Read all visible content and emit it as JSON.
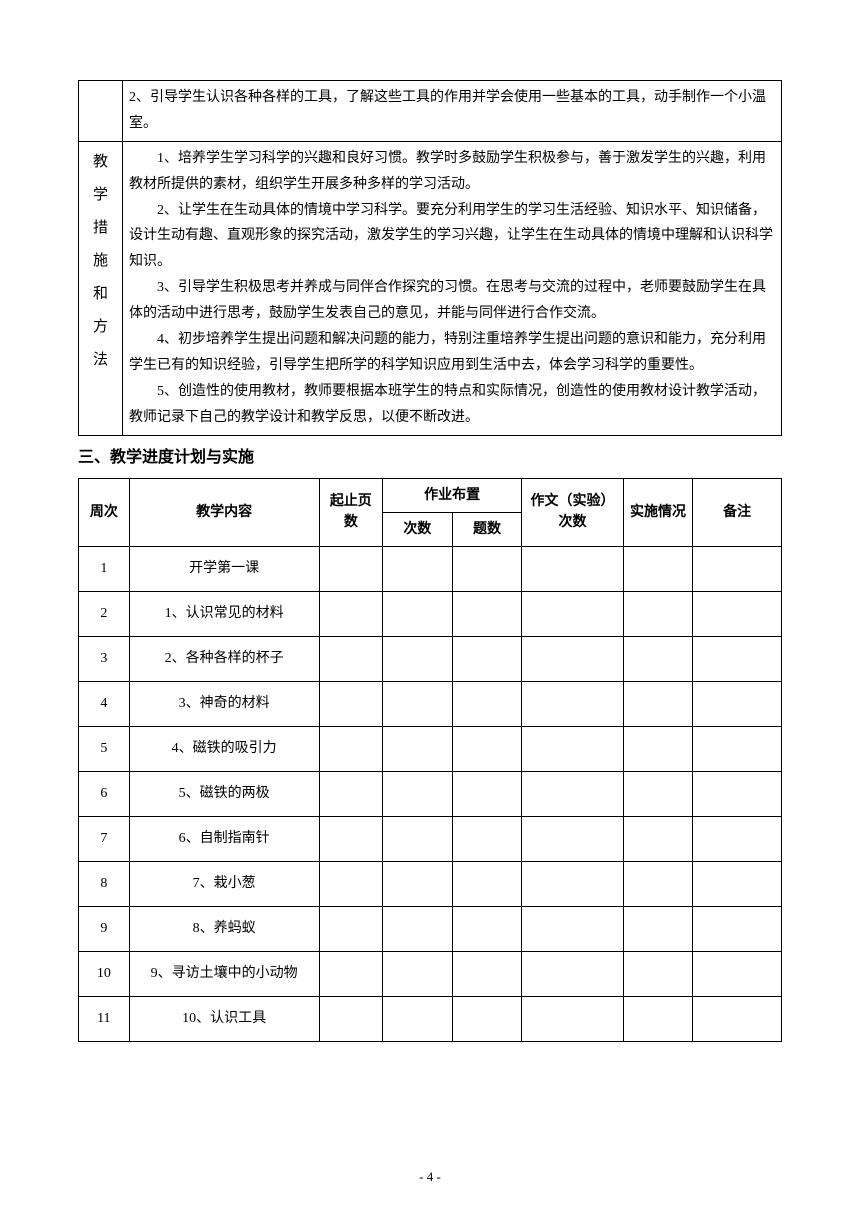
{
  "top_row": {
    "text": "2、引导学生认识各种各样的工具，了解这些工具的作用并学会使用一些基本的工具，动手制作一个小温室。"
  },
  "measures": {
    "label_chars": [
      "教",
      "学",
      "措",
      "施",
      "和",
      "方",
      "法"
    ],
    "paragraphs": [
      "1、培养学生学习科学的兴趣和良好习惯。教学时多鼓励学生积极参与，善于激发学生的兴趣，利用教材所提供的素材，组织学生开展多种多样的学习活动。",
      "2、让学生在生动具体的情境中学习科学。要充分利用学生的学习生活经验、知识水平、知识储备，设计生动有趣、直观形象的探究活动，激发学生的学习兴趣，让学生在生动具体的情境中理解和认识科学知识。",
      "3、引导学生积极思考并养成与同伴合作探究的习惯。在思考与交流的过程中，老师要鼓励学生在具体的活动中进行思考，鼓励学生发表自己的意见，并能与同伴进行合作交流。",
      "4、初步培养学生提出问题和解决问题的能力，特别注重培养学生提出问题的意识和能力，充分利用学生已有的知识经验，引导学生把所学的科学知识应用到生活中去，体会学习科学的重要性。",
      "5、创造性的使用教材，教师要根据本班学生的特点和实际情况，创造性的使用教材设计教学活动，教师记录下自己的教学设计和教学反思，以便不断改进。"
    ]
  },
  "section_heading": "三、教学进度计划与实施",
  "schedule": {
    "headers": {
      "week": "周次",
      "content": "教学内容",
      "pages": "起止页数",
      "homework": "作业布置",
      "hw_times": "次数",
      "hw_count": "题数",
      "essay": "作文（实验）次数",
      "status": "实施情况",
      "notes": "备注"
    },
    "rows": [
      {
        "num": "1",
        "content": "开学第一课"
      },
      {
        "num": "2",
        "content": "1、认识常见的材料"
      },
      {
        "num": "3",
        "content": "2、各种各样的杯子"
      },
      {
        "num": "4",
        "content": "3、神奇的材料"
      },
      {
        "num": "5",
        "content": "4、磁铁的吸引力"
      },
      {
        "num": "6",
        "content": "5、磁铁的两极"
      },
      {
        "num": "7",
        "content": "6、自制指南针"
      },
      {
        "num": "8",
        "content": "7、栽小葱"
      },
      {
        "num": "9",
        "content": "8、养蚂蚁"
      },
      {
        "num": "10",
        "content": "9、寻访土壤中的小动物"
      },
      {
        "num": "11",
        "content": "10、认识工具"
      }
    ]
  },
  "page_number": "- 4 -"
}
